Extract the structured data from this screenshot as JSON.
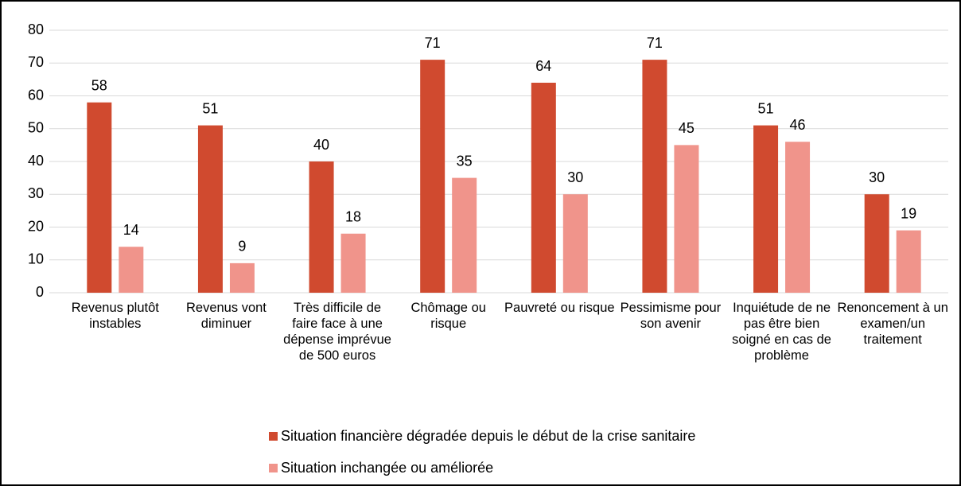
{
  "chart_data": {
    "type": "bar",
    "categories": [
      "Revenus plutôt instables",
      "Revenus vont diminuer",
      "Très difficile de faire face à une dépense imprévue de 500 euros",
      "Chômage ou risque",
      "Pauvreté ou risque",
      "Pessimisme pour son avenir",
      "Inquiétude de ne pas être bien soigné en cas de problème",
      "Renoncement à un examen/un traitement"
    ],
    "series": [
      {
        "name": "Situation financière dégradée depuis le début de la crise sanitaire",
        "color": "#d04a2f",
        "values": [
          58,
          51,
          40,
          71,
          64,
          71,
          51,
          30
        ]
      },
      {
        "name": "Situation inchangée ou améliorée",
        "color": "#f0948b",
        "values": [
          14,
          9,
          18,
          35,
          30,
          45,
          46,
          19
        ]
      }
    ],
    "ylim": [
      0,
      80
    ],
    "yticks": [
      0,
      10,
      20,
      30,
      40,
      50,
      60,
      70,
      80
    ],
    "grid": true,
    "legend": "bottom"
  }
}
